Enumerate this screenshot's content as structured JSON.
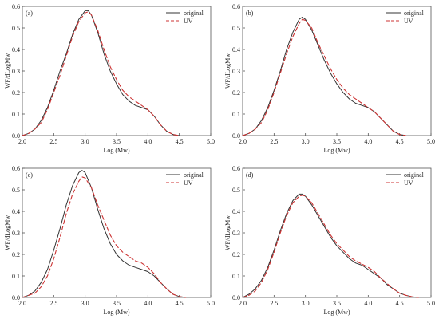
{
  "chart_data": [
    {
      "type": "line",
      "panel_label": "(a)",
      "xlabel": "Log (Mw)",
      "ylabel": "WF/dLogMw",
      "xlim": [
        2.0,
        5.0
      ],
      "ylim": [
        0,
        0.6
      ],
      "xticks": [
        "2.0",
        "2.5",
        "3.0",
        "3.5",
        "4.0",
        "4.5",
        "5.0"
      ],
      "yticks": [
        "0.0",
        "0.1",
        "0.2",
        "0.3",
        "0.4",
        "0.5",
        "0.6"
      ],
      "legend_position": "top-right",
      "series": [
        {
          "name": "original",
          "color": "#333333",
          "style": "solid",
          "x": [
            2.0,
            2.1,
            2.2,
            2.3,
            2.4,
            2.5,
            2.6,
            2.7,
            2.8,
            2.9,
            3.0,
            3.05,
            3.1,
            3.2,
            3.3,
            3.4,
            3.5,
            3.6,
            3.7,
            3.8,
            3.9,
            4.0,
            4.1,
            4.2,
            4.3,
            4.4,
            4.5
          ],
          "y": [
            0.0,
            0.01,
            0.03,
            0.07,
            0.13,
            0.21,
            0.3,
            0.38,
            0.47,
            0.54,
            0.58,
            0.58,
            0.56,
            0.48,
            0.38,
            0.3,
            0.24,
            0.19,
            0.16,
            0.14,
            0.13,
            0.12,
            0.09,
            0.05,
            0.02,
            0.005,
            0.0
          ]
        },
        {
          "name": "UV",
          "color": "#cc3333",
          "style": "dashed",
          "x": [
            2.0,
            2.1,
            2.2,
            2.3,
            2.4,
            2.5,
            2.6,
            2.7,
            2.8,
            2.9,
            3.0,
            3.05,
            3.1,
            3.2,
            3.3,
            3.4,
            3.5,
            3.6,
            3.7,
            3.8,
            3.9,
            4.0,
            4.1,
            4.2,
            4.3,
            4.4,
            4.5
          ],
          "y": [
            0.0,
            0.01,
            0.03,
            0.06,
            0.12,
            0.2,
            0.28,
            0.37,
            0.46,
            0.53,
            0.57,
            0.575,
            0.56,
            0.49,
            0.4,
            0.32,
            0.26,
            0.21,
            0.18,
            0.16,
            0.14,
            0.12,
            0.09,
            0.05,
            0.02,
            0.005,
            0.0
          ]
        }
      ]
    },
    {
      "type": "line",
      "panel_label": "(b)",
      "xlabel": "Log (Mw)",
      "ylabel": "WF/dLogMw",
      "xlim": [
        2.0,
        5.0
      ],
      "ylim": [
        0,
        0.6
      ],
      "xticks": [
        "2.0",
        "2.5",
        "3.0",
        "3.5",
        "4.0",
        "4.5",
        "5.0"
      ],
      "yticks": [
        "0.0",
        "0.1",
        "0.2",
        "0.3",
        "0.4",
        "0.5",
        "0.6"
      ],
      "legend_position": "top-right",
      "series": [
        {
          "name": "original",
          "color": "#333333",
          "style": "solid",
          "x": [
            2.0,
            2.1,
            2.2,
            2.3,
            2.4,
            2.5,
            2.6,
            2.7,
            2.8,
            2.9,
            2.95,
            3.0,
            3.1,
            3.2,
            3.3,
            3.4,
            3.5,
            3.6,
            3.7,
            3.8,
            3.9,
            4.0,
            4.1,
            4.2,
            4.3,
            4.4,
            4.5,
            4.6
          ],
          "y": [
            0.0,
            0.01,
            0.03,
            0.07,
            0.13,
            0.21,
            0.3,
            0.4,
            0.48,
            0.54,
            0.55,
            0.54,
            0.49,
            0.42,
            0.35,
            0.29,
            0.24,
            0.2,
            0.17,
            0.15,
            0.14,
            0.13,
            0.11,
            0.08,
            0.05,
            0.02,
            0.005,
            0.0
          ]
        },
        {
          "name": "UV",
          "color": "#cc3333",
          "style": "dashed",
          "x": [
            2.0,
            2.1,
            2.2,
            2.3,
            2.4,
            2.5,
            2.6,
            2.7,
            2.8,
            2.9,
            2.95,
            3.0,
            3.1,
            3.2,
            3.3,
            3.4,
            3.5,
            3.6,
            3.7,
            3.8,
            3.9,
            4.0,
            4.1,
            4.2,
            4.3,
            4.4,
            4.5,
            4.6
          ],
          "y": [
            0.0,
            0.01,
            0.03,
            0.06,
            0.12,
            0.2,
            0.29,
            0.38,
            0.46,
            0.52,
            0.54,
            0.535,
            0.5,
            0.43,
            0.37,
            0.31,
            0.26,
            0.22,
            0.19,
            0.17,
            0.15,
            0.13,
            0.11,
            0.08,
            0.05,
            0.02,
            0.005,
            0.0
          ]
        }
      ]
    },
    {
      "type": "line",
      "panel_label": "(c)",
      "xlabel": "Log (Mw)",
      "ylabel": "WF/dLogMw",
      "xlim": [
        2.0,
        5.0
      ],
      "ylim": [
        0,
        0.6
      ],
      "xticks": [
        "2.0",
        "2.5",
        "3.0",
        "3.5",
        "4.0",
        "4.5",
        "5.0"
      ],
      "yticks": [
        "0.0",
        "0.1",
        "0.2",
        "0.3",
        "0.4",
        "0.5",
        "0.6"
      ],
      "legend_position": "top-right",
      "series": [
        {
          "name": "original",
          "color": "#333333",
          "style": "solid",
          "x": [
            2.0,
            2.1,
            2.2,
            2.3,
            2.4,
            2.5,
            2.6,
            2.7,
            2.8,
            2.9,
            2.95,
            3.0,
            3.1,
            3.2,
            3.3,
            3.4,
            3.5,
            3.6,
            3.7,
            3.8,
            3.9,
            4.0,
            4.1,
            4.2,
            4.3,
            4.4,
            4.5,
            4.6
          ],
          "y": [
            0.0,
            0.01,
            0.03,
            0.07,
            0.13,
            0.22,
            0.32,
            0.43,
            0.52,
            0.58,
            0.59,
            0.58,
            0.51,
            0.41,
            0.32,
            0.25,
            0.2,
            0.17,
            0.15,
            0.14,
            0.13,
            0.12,
            0.1,
            0.07,
            0.04,
            0.015,
            0.004,
            0.0
          ]
        },
        {
          "name": "UV",
          "color": "#cc3333",
          "style": "dashed",
          "x": [
            2.0,
            2.1,
            2.2,
            2.3,
            2.4,
            2.5,
            2.6,
            2.7,
            2.8,
            2.9,
            2.95,
            3.0,
            3.1,
            3.2,
            3.3,
            3.4,
            3.5,
            3.6,
            3.7,
            3.8,
            3.9,
            4.0,
            4.1,
            4.2,
            4.3,
            4.4,
            4.5,
            4.6
          ],
          "y": [
            0.0,
            0.01,
            0.02,
            0.05,
            0.1,
            0.18,
            0.28,
            0.39,
            0.48,
            0.54,
            0.56,
            0.555,
            0.51,
            0.43,
            0.36,
            0.29,
            0.24,
            0.21,
            0.19,
            0.17,
            0.16,
            0.14,
            0.11,
            0.07,
            0.04,
            0.015,
            0.004,
            0.0
          ]
        }
      ]
    },
    {
      "type": "line",
      "panel_label": "(d)",
      "xlabel": "Log (Mw)",
      "ylabel": "WF/dLogMw",
      "xlim": [
        2.0,
        5.0
      ],
      "ylim": [
        0,
        0.6
      ],
      "xticks": [
        "2.0",
        "2.5",
        "3.0",
        "3.5",
        "4.0",
        "4.5",
        "5.0"
      ],
      "yticks": [
        "0.0",
        "0.1",
        "0.2",
        "0.3",
        "0.4",
        "0.5",
        "0.6"
      ],
      "legend_position": "top-right",
      "series": [
        {
          "name": "original",
          "color": "#333333",
          "style": "solid",
          "x": [
            2.0,
            2.1,
            2.2,
            2.3,
            2.4,
            2.5,
            2.6,
            2.7,
            2.8,
            2.9,
            2.95,
            3.0,
            3.1,
            3.2,
            3.3,
            3.4,
            3.5,
            3.6,
            3.7,
            3.8,
            3.9,
            4.0,
            4.1,
            4.2,
            4.3,
            4.4,
            4.5,
            4.6,
            4.7,
            4.8
          ],
          "y": [
            0.0,
            0.015,
            0.04,
            0.08,
            0.14,
            0.22,
            0.31,
            0.39,
            0.45,
            0.48,
            0.48,
            0.47,
            0.43,
            0.38,
            0.33,
            0.28,
            0.24,
            0.21,
            0.18,
            0.16,
            0.15,
            0.13,
            0.11,
            0.09,
            0.06,
            0.04,
            0.02,
            0.01,
            0.003,
            0.0
          ]
        },
        {
          "name": "UV",
          "color": "#cc3333",
          "style": "dashed",
          "x": [
            2.0,
            2.1,
            2.2,
            2.3,
            2.4,
            2.5,
            2.6,
            2.7,
            2.8,
            2.9,
            2.95,
            3.0,
            3.1,
            3.2,
            3.3,
            3.4,
            3.5,
            3.6,
            3.7,
            3.8,
            3.9,
            4.0,
            4.1,
            4.2,
            4.3,
            4.4,
            4.5,
            4.6,
            4.7,
            4.8
          ],
          "y": [
            0.0,
            0.01,
            0.03,
            0.07,
            0.13,
            0.21,
            0.3,
            0.38,
            0.44,
            0.47,
            0.475,
            0.47,
            0.44,
            0.39,
            0.34,
            0.29,
            0.25,
            0.22,
            0.19,
            0.17,
            0.155,
            0.14,
            0.12,
            0.09,
            0.065,
            0.04,
            0.02,
            0.01,
            0.003,
            0.0
          ]
        }
      ]
    }
  ]
}
